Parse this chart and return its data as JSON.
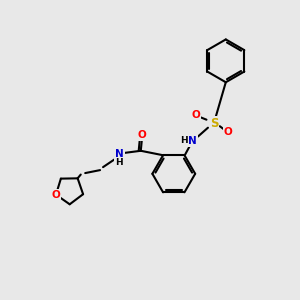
{
  "background_color": "#e8e8e8",
  "bond_color": "#000000",
  "atom_colors": {
    "O": "#ff0000",
    "N": "#0000cd",
    "S": "#ccaa00",
    "C": "#000000",
    "H": "#000000"
  },
  "figsize": [
    3.0,
    3.0
  ],
  "dpi": 100,
  "xlim": [
    0,
    10
  ],
  "ylim": [
    0,
    10
  ]
}
